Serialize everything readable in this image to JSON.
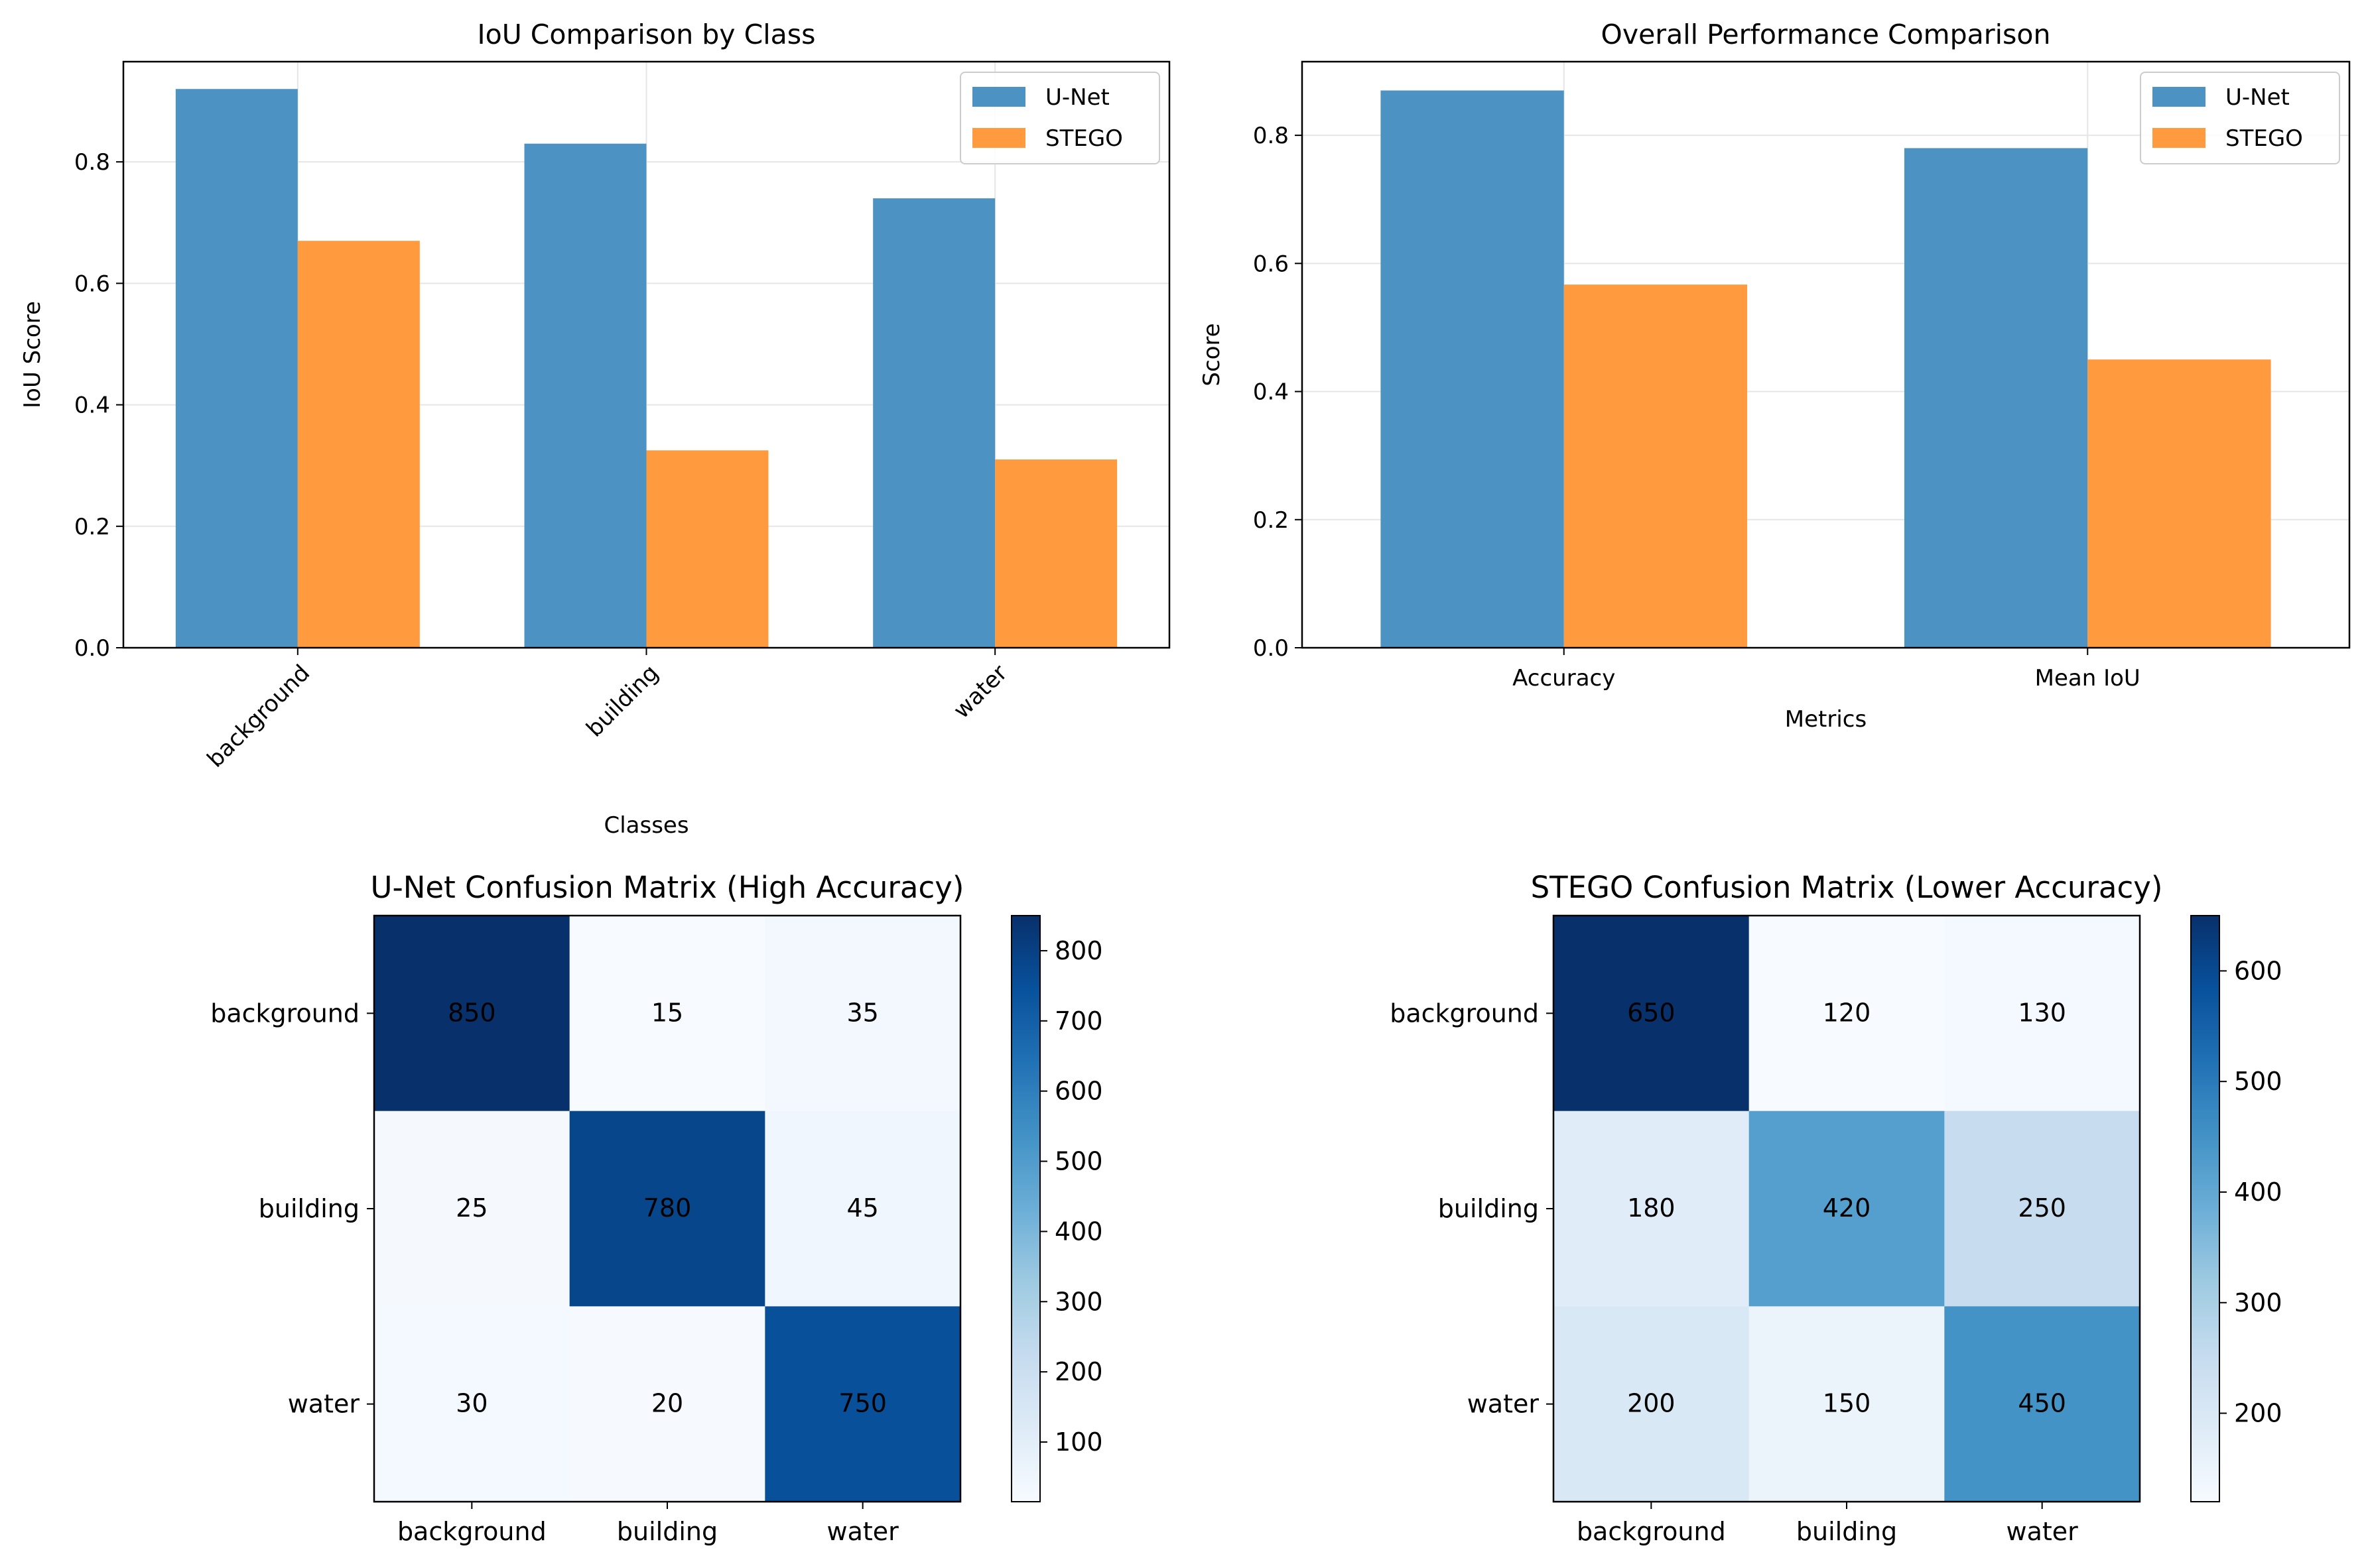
{
  "chart_data": [
    {
      "type": "bar",
      "title": "IoU Comparison by Class",
      "xlabel": "Classes",
      "ylabel": "IoU Score",
      "categories": [
        "background",
        "building",
        "water"
      ],
      "series": [
        {
          "name": "U-Net",
          "values": [
            0.92,
            0.83,
            0.74
          ],
          "color": "#4c93c4"
        },
        {
          "name": "STEGO",
          "values": [
            0.67,
            0.325,
            0.31
          ],
          "color": "#ff9a3f"
        }
      ],
      "ylim": [
        0,
        0.965
      ],
      "yticks": [
        "0.0",
        "0.2",
        "0.4",
        "0.6",
        "0.8"
      ],
      "grid": true,
      "legend": "top-right",
      "xtick_rotation": 45
    },
    {
      "type": "bar",
      "title": "Overall Performance Comparison",
      "xlabel": "Metrics",
      "ylabel": "Score",
      "categories": [
        "Accuracy",
        "Mean IoU"
      ],
      "series": [
        {
          "name": "U-Net",
          "values": [
            0.87,
            0.78
          ],
          "color": "#4c93c4"
        },
        {
          "name": "STEGO",
          "values": [
            0.567,
            0.45
          ],
          "color": "#ff9a3f"
        }
      ],
      "ylim": [
        0,
        0.915
      ],
      "yticks": [
        "0.0",
        "0.2",
        "0.4",
        "0.6",
        "0.8"
      ],
      "grid": true,
      "legend": "top-right"
    },
    {
      "type": "heatmap",
      "title": "U-Net Confusion Matrix (High Accuracy)",
      "labels": [
        "background",
        "building",
        "water"
      ],
      "matrix": [
        [
          850,
          15,
          35
        ],
        [
          25,
          780,
          45
        ],
        [
          30,
          20,
          750
        ]
      ],
      "colormap": "Blues",
      "colorbar_ticks": [
        "100",
        "200",
        "300",
        "400",
        "500",
        "600",
        "700",
        "800"
      ]
    },
    {
      "type": "heatmap",
      "title": "STEGO Confusion Matrix (Lower Accuracy)",
      "labels": [
        "background",
        "building",
        "water"
      ],
      "matrix": [
        [
          650,
          120,
          130
        ],
        [
          180,
          420,
          250
        ],
        [
          200,
          150,
          450
        ]
      ],
      "colormap": "Blues",
      "colorbar_ticks": [
        "200",
        "300",
        "400",
        "500",
        "600"
      ]
    }
  ]
}
